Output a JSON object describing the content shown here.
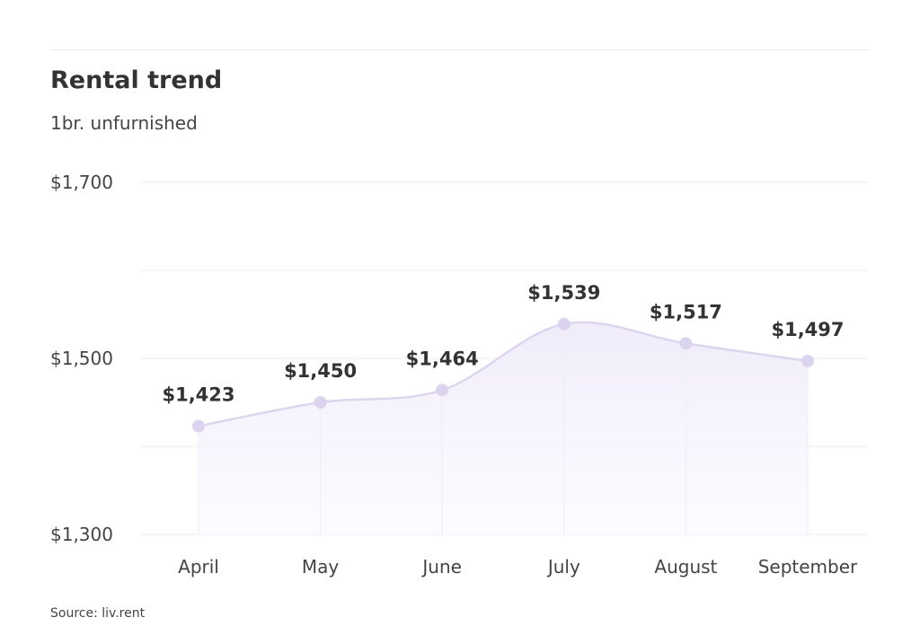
{
  "chart_data": {
    "type": "area",
    "title": "Rental trend",
    "subtitle": "1br. unfurnished",
    "categories": [
      "April",
      "May",
      "June",
      "July",
      "August",
      "September"
    ],
    "values": [
      1423,
      1450,
      1464,
      1539,
      1517,
      1497
    ],
    "value_labels": [
      "$1,423",
      "$1,450",
      "$1,464",
      "$1,539",
      "$1,517",
      "$1,497"
    ],
    "ylim": [
      1300,
      1700
    ],
    "gridlines": [
      1300,
      1400,
      1500,
      1600,
      1700
    ],
    "ytick_values": [
      1300,
      1500,
      1700
    ],
    "ytick_labels": [
      "$1,300",
      "$1,500",
      "$1,700"
    ],
    "grid": true,
    "smooth": true
  },
  "source": "Source: liv.rent",
  "colors": {
    "line": "#ddd5ee",
    "point": "#dcd3ee",
    "fill_top": "#efebfa",
    "fill_bottom": "#fbfaff",
    "grid": "#eeeeee",
    "text": "#333333"
  }
}
